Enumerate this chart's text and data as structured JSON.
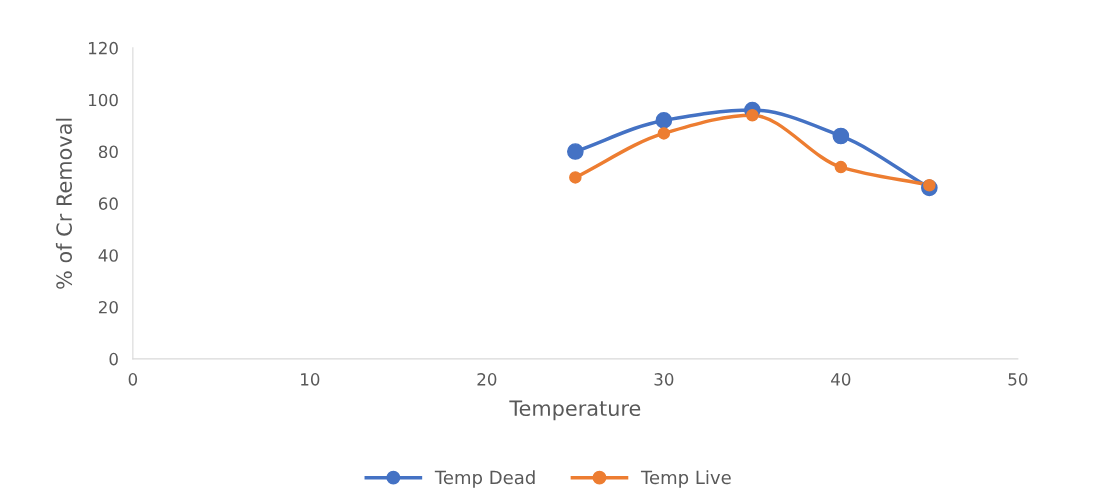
{
  "chart_data": {
    "type": "line",
    "xlabel": "Temperature",
    "ylabel": "% of Cr Removal",
    "xlim": [
      0,
      50
    ],
    "xticks": [
      0,
      10,
      20,
      30,
      40,
      50
    ],
    "ylim": [
      0,
      120
    ],
    "yticks": [
      0,
      20,
      40,
      60,
      80,
      100,
      120
    ],
    "x": [
      25,
      30,
      35,
      40,
      45
    ],
    "series": [
      {
        "name": "Temp Dead",
        "color": "#4472c4",
        "values": [
          80,
          92,
          96,
          86,
          66
        ]
      },
      {
        "name": "Temp Live",
        "color": "#ed7d31",
        "values": [
          70,
          87,
          94,
          74,
          67
        ]
      }
    ],
    "marker": "circle",
    "line_style": "solid",
    "grid": false,
    "legend": "bottom"
  }
}
